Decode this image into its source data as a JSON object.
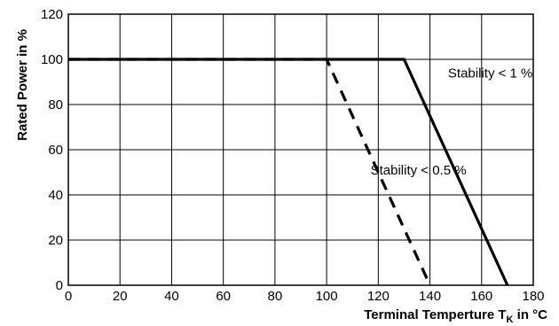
{
  "chart_data": {
    "type": "line",
    "xlabel": "Terminal Temperture T",
    "xlabel_subscript": "K",
    "xlabel_suffix": " in °C",
    "ylabel": "Rated Power in %",
    "xlim": [
      0,
      180
    ],
    "ylim": [
      0,
      120
    ],
    "x_ticks": [
      0,
      20,
      40,
      60,
      80,
      100,
      120,
      140,
      160,
      180
    ],
    "y_ticks": [
      0,
      20,
      40,
      60,
      80,
      100,
      120
    ],
    "grid": true,
    "series": [
      {
        "style": "solid",
        "color": "#000000",
        "points": [
          [
            0,
            100
          ],
          [
            130,
            100
          ],
          [
            170,
            0
          ]
        ]
      },
      {
        "style": "dashed",
        "color": "#000000",
        "points": [
          [
            0,
            100
          ],
          [
            100,
            100
          ],
          [
            140,
            0
          ]
        ]
      }
    ],
    "annotations": [
      {
        "text": "Stability < 1 %",
        "x": 147,
        "y": 92
      },
      {
        "text": "Stability < 0.5 %",
        "x": 117,
        "y": 49
      }
    ]
  }
}
